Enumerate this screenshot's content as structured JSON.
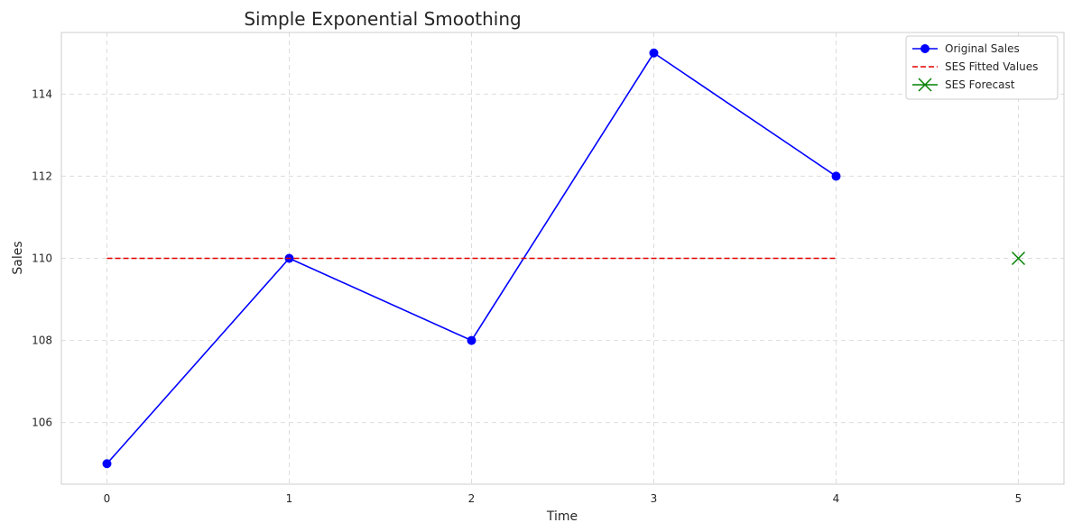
{
  "chart_data": {
    "type": "line",
    "title": "Simple Exponential Smoothing",
    "xlabel": "Time",
    "ylabel": "Sales",
    "xlim": [
      -0.25,
      5.25
    ],
    "ylim": [
      104.5,
      115.5
    ],
    "x_ticks": [
      0,
      1,
      2,
      3,
      4,
      5
    ],
    "y_ticks": [
      106,
      108,
      110,
      112,
      114
    ],
    "grid": true,
    "legend_position": "top-right",
    "series": [
      {
        "name": "Original Sales",
        "x": [
          0,
          1,
          2,
          3,
          4
        ],
        "y": [
          105,
          110,
          108,
          115,
          112
        ],
        "color": "#0000ff",
        "style": "solid",
        "marker": "circle"
      },
      {
        "name": "SES Fitted Values",
        "x": [
          0,
          1,
          2,
          3,
          4
        ],
        "y": [
          110,
          110,
          110,
          110,
          110
        ],
        "color": "#e00000",
        "style": "dashed",
        "marker": "none"
      },
      {
        "name": "SES Forecast",
        "x": [
          5
        ],
        "y": [
          110
        ],
        "color": "#008000",
        "style": "none",
        "marker": "x"
      }
    ]
  }
}
